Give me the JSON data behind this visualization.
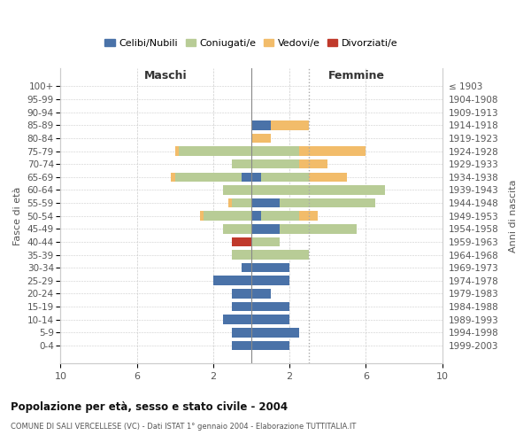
{
  "age_groups": [
    "100+",
    "95-99",
    "90-94",
    "85-89",
    "80-84",
    "75-79",
    "70-74",
    "65-69",
    "60-64",
    "55-59",
    "50-54",
    "45-49",
    "40-44",
    "35-39",
    "30-34",
    "25-29",
    "20-24",
    "15-19",
    "10-14",
    "5-9",
    "0-4"
  ],
  "birth_years": [
    "≤ 1903",
    "1904-1908",
    "1909-1913",
    "1914-1918",
    "1919-1923",
    "1924-1928",
    "1929-1933",
    "1934-1938",
    "1939-1943",
    "1944-1948",
    "1949-1953",
    "1954-1958",
    "1959-1963",
    "1964-1968",
    "1969-1973",
    "1974-1978",
    "1979-1983",
    "1984-1988",
    "1989-1993",
    "1994-1998",
    "1999-2003"
  ],
  "male_celibi": [
    0,
    0,
    0,
    0,
    0,
    0,
    0,
    0.5,
    0,
    0,
    0,
    0,
    0,
    0,
    0.5,
    2.0,
    1.0,
    1.0,
    1.5,
    1.0,
    1.0
  ],
  "male_coniugati": [
    0,
    0,
    0,
    0,
    0,
    3.8,
    1.0,
    3.5,
    1.5,
    1.0,
    2.5,
    1.5,
    0,
    1.0,
    0,
    0,
    0,
    0,
    0,
    0,
    0
  ],
  "male_vedovi": [
    0,
    0,
    0,
    0,
    0,
    0.2,
    0,
    0.2,
    0,
    0.2,
    0.2,
    0,
    0,
    0,
    0,
    0,
    0,
    0,
    0,
    0,
    0
  ],
  "male_divorziati": [
    0,
    0,
    0,
    0,
    0,
    0,
    0,
    0,
    0,
    0,
    0,
    0,
    1.0,
    0,
    0,
    0,
    0,
    0,
    0,
    0,
    0
  ],
  "female_nubili": [
    0,
    0,
    0,
    1.0,
    0,
    0,
    0,
    0.5,
    0,
    1.5,
    0.5,
    1.5,
    0,
    0,
    2.0,
    2.0,
    1.0,
    2.0,
    2.0,
    2.5,
    2.0
  ],
  "female_coniugate": [
    0,
    0,
    0,
    0,
    0,
    2.5,
    2.5,
    2.5,
    7.0,
    5.0,
    2.0,
    4.0,
    1.5,
    3.0,
    0,
    0,
    0,
    0,
    0,
    0,
    0
  ],
  "female_vedove": [
    0,
    0,
    0,
    2.0,
    1.0,
    3.5,
    1.5,
    2.0,
    0,
    0,
    1.0,
    0,
    0,
    0,
    0,
    0,
    0,
    0,
    0,
    0,
    0
  ],
  "female_divorziate": [
    0,
    0,
    0,
    0,
    0,
    0,
    0,
    0,
    0,
    0,
    0,
    0,
    0,
    0,
    0,
    0,
    0,
    0,
    0,
    0,
    0
  ],
  "colors": {
    "celibi": "#4a72a8",
    "coniugati": "#b8cc96",
    "vedovi": "#f2bc6a",
    "divorziati": "#c0392b"
  },
  "xlim": 10,
  "xticks_pos": [
    -10,
    -6,
    -2,
    2,
    6,
    10
  ],
  "xtick_labels": [
    "10",
    "6",
    "2",
    "2",
    "6",
    "10"
  ],
  "title": "Popolazione per età, sesso e stato civile - 2004",
  "subtitle": "COMUNE DI SALI VERCELLESE (VC) - Dati ISTAT 1° gennaio 2004 - Elaborazione TUTTITALIA.IT",
  "ylabel_left": "Fasce di età",
  "ylabel_right": "Anni di nascita",
  "label_male": "Maschi",
  "label_female": "Femmine",
  "legend_labels": [
    "Celibi/Nubili",
    "Coniugati/e",
    "Vedovi/e",
    "Divorziati/e"
  ],
  "bar_height": 0.72
}
